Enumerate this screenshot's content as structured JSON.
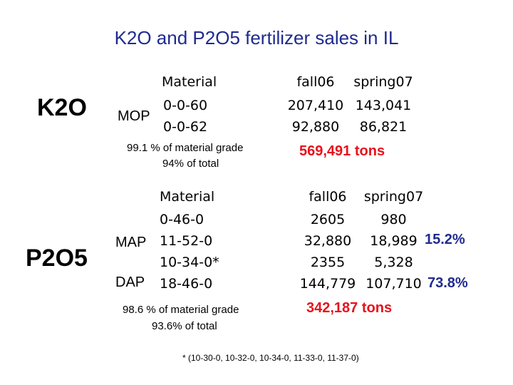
{
  "title": "K2O and P2O5 fertilizer sales in IL",
  "k2o": {
    "label": "K2O",
    "group": "MOP",
    "header": {
      "material": "Material",
      "fall": "fall06",
      "spring": "spring07"
    },
    "rows": [
      {
        "material": "0-0-60",
        "fall": "207,410",
        "spring": "143,041"
      },
      {
        "material": "0-0-62",
        "fall": "92,880",
        "spring": "86,821"
      }
    ],
    "note1": "99.1 % of material grade",
    "note2": "94% of total",
    "total": "569,491 tons"
  },
  "p2o5": {
    "label": "P2O5",
    "group_map": "MAP",
    "group_dap": "DAP",
    "header": {
      "material": "Material",
      "fall": "fall06",
      "spring": "spring07"
    },
    "rows": [
      {
        "material": "0-46-0",
        "fall": "2605",
        "spring": "980",
        "pct": ""
      },
      {
        "material": "11-52-0",
        "fall": "32,880",
        "spring": "18,989",
        "pct": "15.2%"
      },
      {
        "material": "10-34-0*",
        "fall": "2355",
        "spring": "5,328",
        "pct": ""
      },
      {
        "material": "18-46-0",
        "fall": "144,779",
        "spring": "107,710",
        "pct": "73.8%"
      }
    ],
    "note1": "98.6 % of material grade",
    "note2": "93.6% of total",
    "total": "342,187 tons"
  },
  "footnote": "* (10-30-0, 10-32-0, 10-34-0, 11-33-0, 11-37-0)"
}
